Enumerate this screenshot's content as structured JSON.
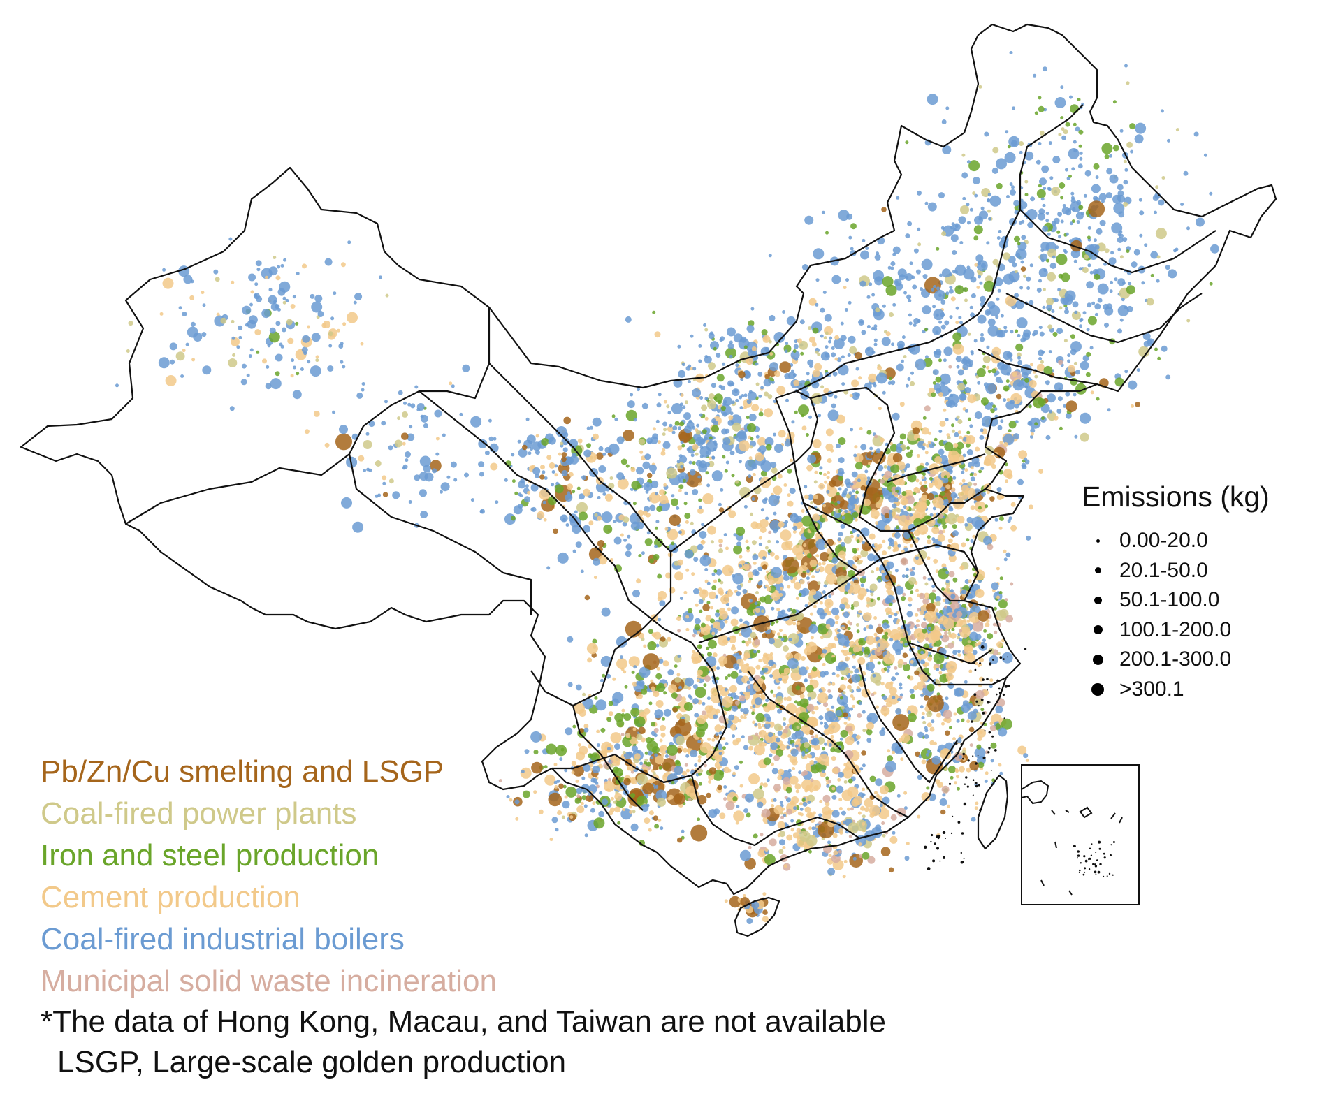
{
  "size_legend": {
    "title": "Emissions (kg)",
    "classes": [
      {
        "label": "0.00-20.0"
      },
      {
        "label": "20.1-50.0"
      },
      {
        "label": "50.1-100.0"
      },
      {
        "label": "100.1-200.0"
      },
      {
        "label": "200.1-300.0"
      },
      {
        "label": ">300.1"
      }
    ]
  },
  "categories": [
    {
      "label": "Pb/Zn/Cu smelting and LSGP",
      "color": "#a5651b"
    },
    {
      "label": "Coal-fired power plants",
      "color": "#cfc98a"
    },
    {
      "label": "Iron and steel production",
      "color": "#6aa52a"
    },
    {
      "label": "Cement production",
      "color": "#f2c98a"
    },
    {
      "label": "Coal-fired industrial boilers",
      "color": "#6b9bd2"
    },
    {
      "label": "Municipal solid waste incineration",
      "color": "#d6ada0"
    }
  ],
  "notes": {
    "line1": "*The data of Hong Kong, Macau, and Taiwan are not available",
    "line2": "LSGP, Large-scale golden production"
  }
}
